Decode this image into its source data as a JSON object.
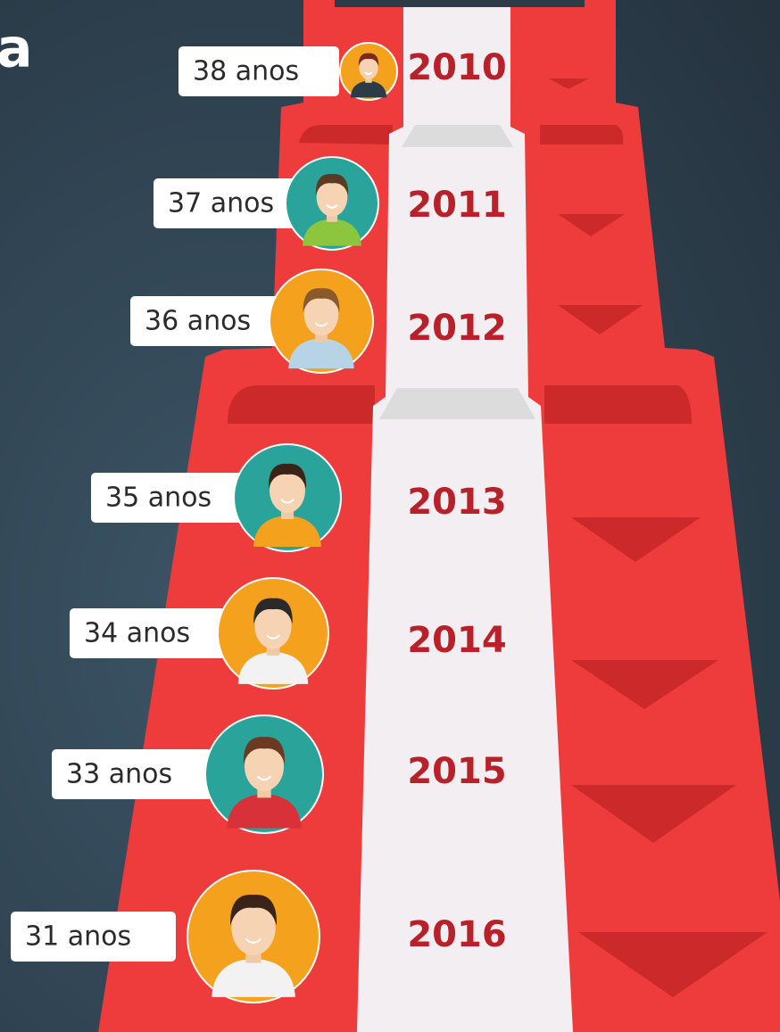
{
  "title": "a",
  "steps": [
    {
      "label": "38 anos",
      "year": "2010"
    },
    {
      "label": "37 anos",
      "year": "2011"
    },
    {
      "label": "36 anos",
      "year": "2012"
    },
    {
      "label": "35 anos",
      "year": "2013"
    },
    {
      "label": "34 anos",
      "year": "2014"
    },
    {
      "label": "33 anos",
      "year": "2015"
    },
    {
      "label": "31 anos",
      "year": "2016"
    }
  ]
}
